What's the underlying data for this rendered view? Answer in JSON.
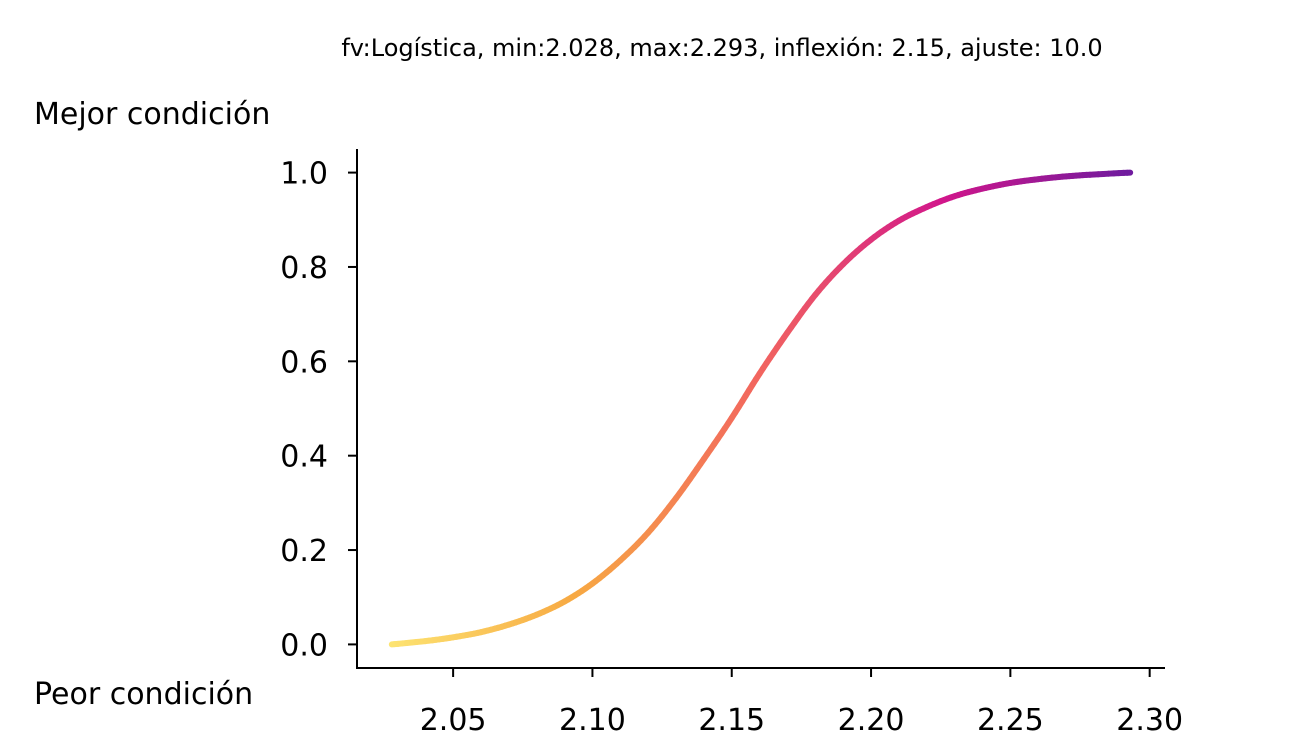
{
  "chart_data": {
    "type": "line",
    "title": "fv:Logística, min:2.028, max:2.293, inflexión: 2.15, ajuste: 10.0",
    "xlabel": "",
    "ylabel": "",
    "top_label": "Mejor condición",
    "bottom_label": "Peor condición",
    "xlim": [
      2.0155,
      2.3055
    ],
    "ylim": [
      -0.05,
      1.05
    ],
    "x_ticks": [
      2.05,
      2.1,
      2.15,
      2.2,
      2.25,
      2.3
    ],
    "x_tick_labels": [
      "2.05",
      "2.10",
      "2.15",
      "2.20",
      "2.25",
      "2.30"
    ],
    "y_ticks": [
      0.0,
      0.2,
      0.4,
      0.6,
      0.8,
      1.0
    ],
    "y_tick_labels": [
      "0.0",
      "0.2",
      "0.4",
      "0.6",
      "0.8",
      "1.0"
    ],
    "grid": false,
    "colormap": [
      "#fde472",
      "#f7a943",
      "#f2655f",
      "#d1168b",
      "#6f1b9e"
    ],
    "series": [
      {
        "x": [
          2.028,
          2.04,
          2.05,
          2.06,
          2.07,
          2.08,
          2.09,
          2.1,
          2.11,
          2.12,
          2.13,
          2.14,
          2.15,
          2.16,
          2.17,
          2.18,
          2.19,
          2.2,
          2.21,
          2.22,
          2.23,
          2.24,
          2.25,
          2.26,
          2.27,
          2.28,
          2.293
        ],
        "values": [
          0.0,
          0.007,
          0.015,
          0.026,
          0.042,
          0.063,
          0.091,
          0.129,
          0.178,
          0.237,
          0.31,
          0.393,
          0.48,
          0.574,
          0.661,
          0.741,
          0.806,
          0.858,
          0.898,
          0.927,
          0.95,
          0.966,
          0.978,
          0.986,
          0.992,
          0.996,
          1.0
        ]
      }
    ]
  }
}
